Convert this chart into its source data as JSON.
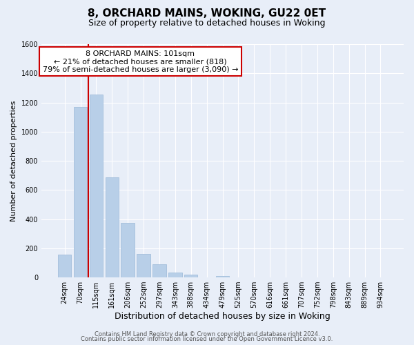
{
  "title": "8, ORCHARD MAINS, WOKING, GU22 0ET",
  "subtitle": "Size of property relative to detached houses in Woking",
  "xlabel": "Distribution of detached houses by size in Woking",
  "ylabel": "Number of detached properties",
  "bar_labels": [
    "24sqm",
    "70sqm",
    "115sqm",
    "161sqm",
    "206sqm",
    "252sqm",
    "297sqm",
    "343sqm",
    "388sqm",
    "434sqm",
    "479sqm",
    "525sqm",
    "570sqm",
    "616sqm",
    "661sqm",
    "707sqm",
    "752sqm",
    "798sqm",
    "843sqm",
    "889sqm",
    "934sqm"
  ],
  "bar_values": [
    155,
    1170,
    1255,
    685,
    375,
    160,
    90,
    35,
    20,
    0,
    10,
    0,
    0,
    0,
    0,
    0,
    0,
    0,
    0,
    0,
    0
  ],
  "bar_color": "#b8cfe8",
  "bar_edge_color": "#9ab8d8",
  "vline_x_index": 2,
  "vline_color": "#cc0000",
  "annotation_text": "8 ORCHARD MAINS: 101sqm\n← 21% of detached houses are smaller (818)\n79% of semi-detached houses are larger (3,090) →",
  "annotation_box_edgecolor": "#cc0000",
  "annotation_box_facecolor": "#ffffff",
  "ylim": [
    0,
    1600
  ],
  "yticks": [
    0,
    200,
    400,
    600,
    800,
    1000,
    1200,
    1400,
    1600
  ],
  "background_color": "#e8eef8",
  "grid_color": "#ffffff",
  "footer_line1": "Contains HM Land Registry data © Crown copyright and database right 2024.",
  "footer_line2": "Contains public sector information licensed under the Open Government Licence v3.0.",
  "title_fontsize": 11,
  "subtitle_fontsize": 9,
  "xlabel_fontsize": 9,
  "ylabel_fontsize": 8,
  "tick_fontsize": 7,
  "annotation_fontsize": 8,
  "footer_fontsize": 6
}
